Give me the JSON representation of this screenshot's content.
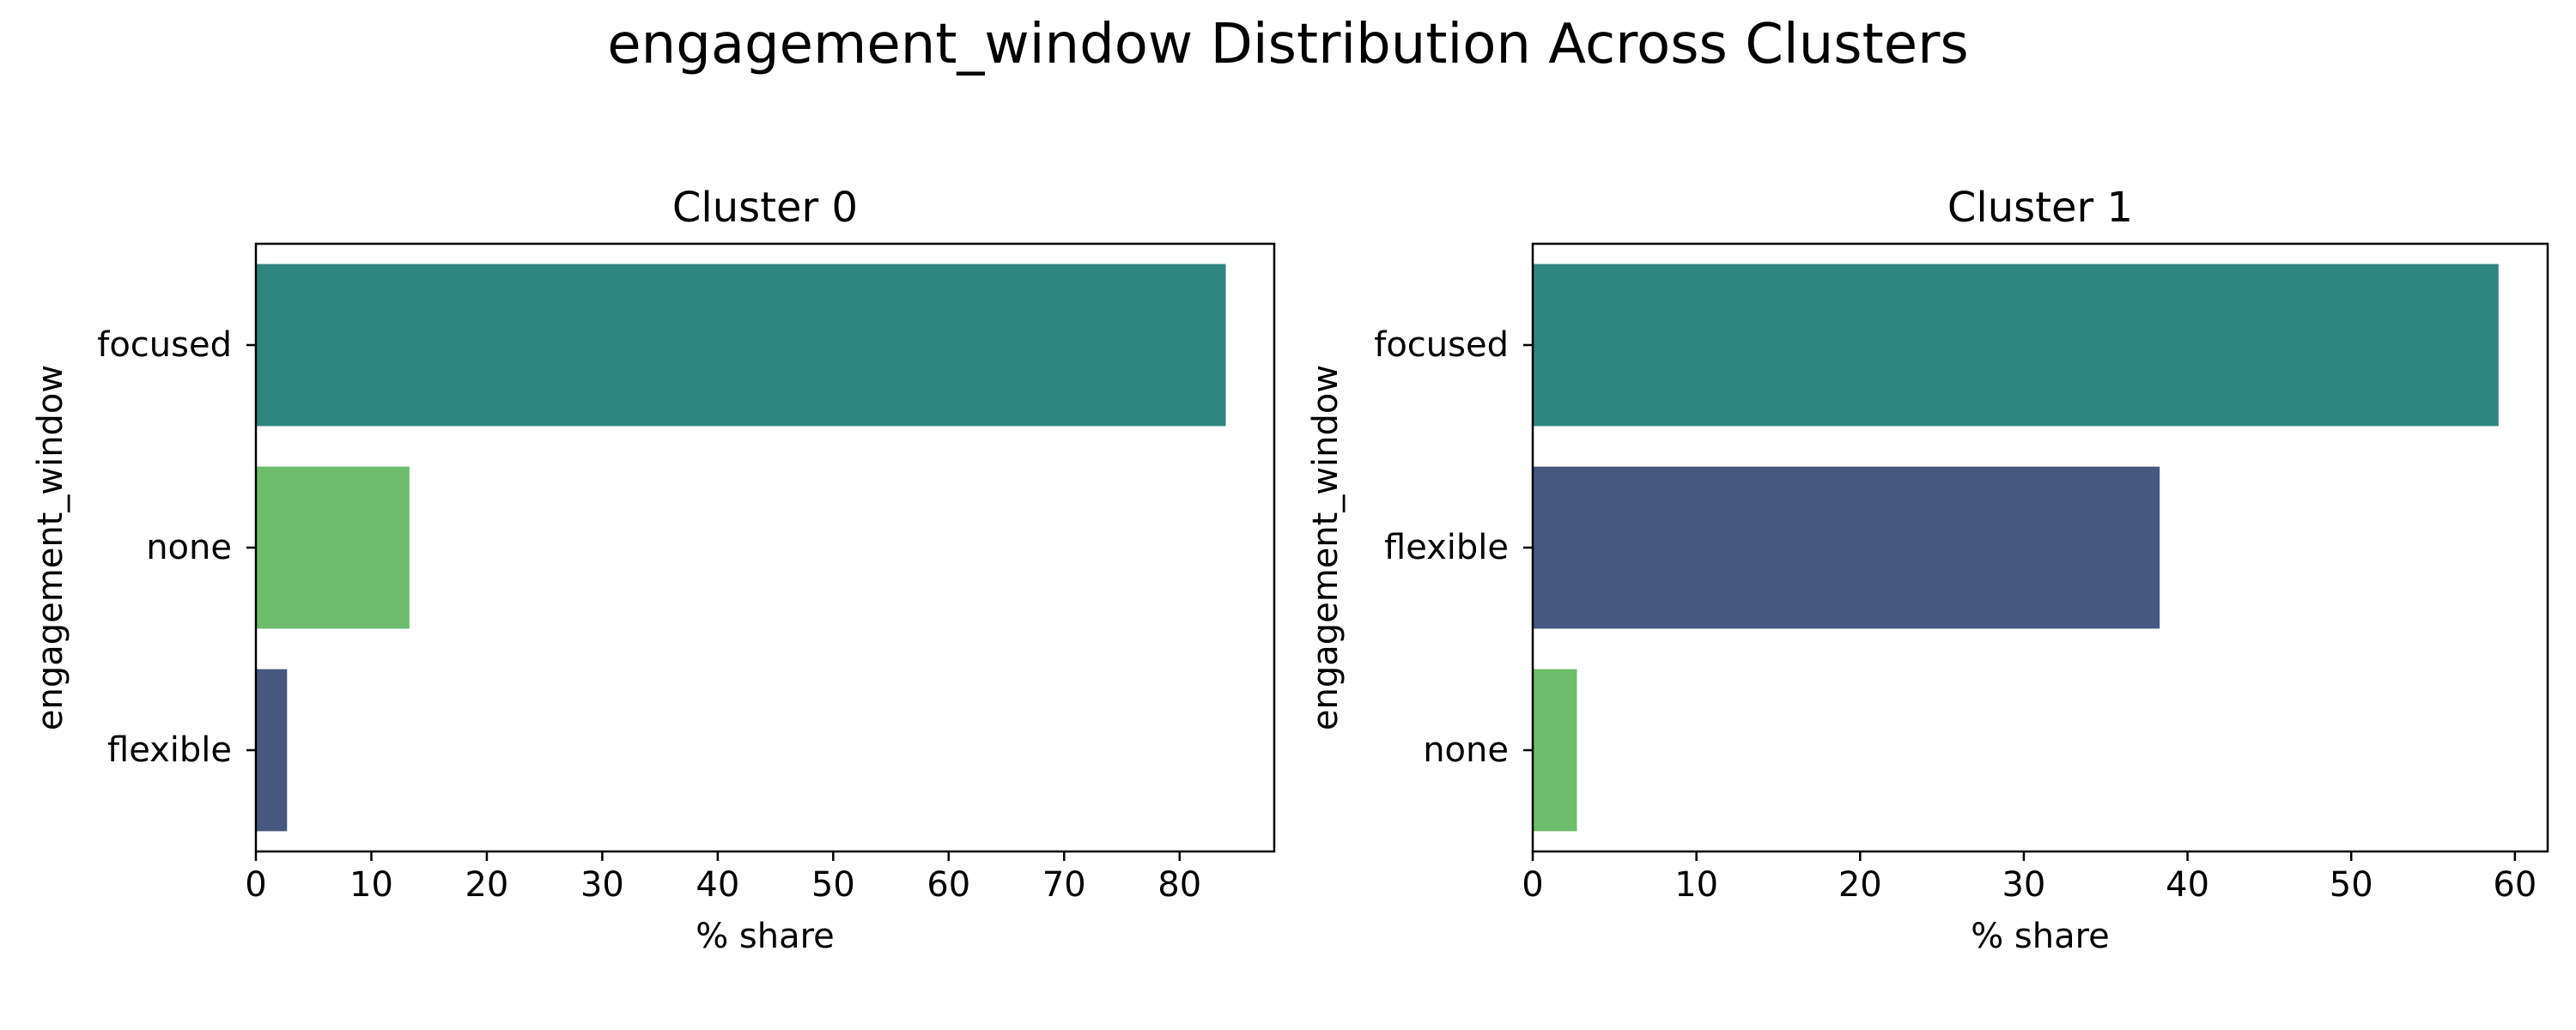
{
  "figure": {
    "title": "engagement_window Distribution Across Clusters"
  },
  "chart_data": [
    {
      "type": "bar",
      "orientation": "horizontal",
      "title": "Cluster 0",
      "xlabel": "% share",
      "ylabel": "engagement_window",
      "categories": [
        "focused",
        "none",
        "flexible"
      ],
      "values": [
        84.0,
        13.3,
        2.7
      ],
      "colors": [
        "#2f8580",
        "#6cbd6c",
        "#46587f"
      ],
      "xlim": [
        0,
        88.2
      ],
      "xticks": [
        0,
        10,
        20,
        30,
        40,
        50,
        60,
        70,
        80
      ],
      "grid": false
    },
    {
      "type": "bar",
      "orientation": "horizontal",
      "title": "Cluster 1",
      "xlabel": "% share",
      "ylabel": "engagement_window",
      "categories": [
        "focused",
        "flexible",
        "none"
      ],
      "values": [
        59.0,
        38.3,
        2.7
      ],
      "colors": [
        "#2f8580",
        "#46587f",
        "#6cbd6c"
      ],
      "xlim": [
        0,
        62.0
      ],
      "xticks": [
        0,
        10,
        20,
        30,
        40,
        50,
        60
      ],
      "grid": false
    }
  ]
}
